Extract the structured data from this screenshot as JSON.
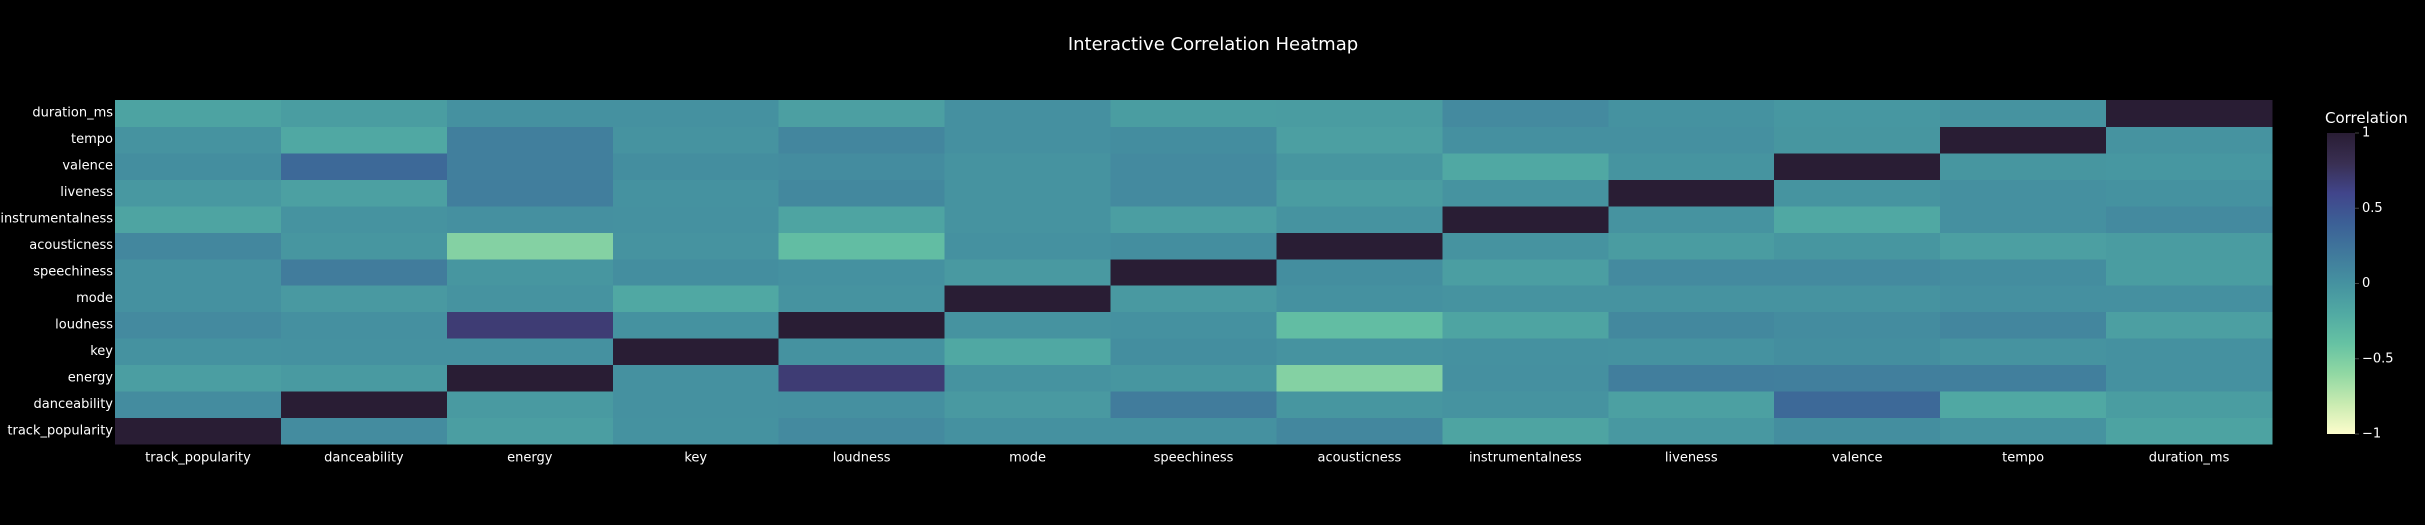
{
  "chart_data": {
    "type": "heatmap",
    "title": "Interactive Correlation Heatmap",
    "colorbar_title": "Correlation",
    "zlim": [
      -1,
      1
    ],
    "colorbar_ticks": [
      {
        "value": 1,
        "label": "1"
      },
      {
        "value": 0.5,
        "label": "0.5"
      },
      {
        "value": 0,
        "label": "0"
      },
      {
        "value": -0.5,
        "label": "−0.5"
      },
      {
        "value": -1,
        "label": "−1"
      }
    ],
    "colorscale": [
      "#fdfdcc",
      "#c9ebb1",
      "#91d8a3",
      "#66c2a3",
      "#51aaa3",
      "#4592a0",
      "#40799c",
      "#3c6096",
      "#41458b",
      "#392f52",
      "#291d34"
    ],
    "x": [
      "track_popularity",
      "danceability",
      "energy",
      "key",
      "loudness",
      "mode",
      "speechiness",
      "acousticness",
      "instrumentalness",
      "liveness",
      "valence",
      "tempo",
      "duration_ms"
    ],
    "y": [
      "track_popularity",
      "danceability",
      "energy",
      "key",
      "loudness",
      "mode",
      "speechiness",
      "acousticness",
      "instrumentalness",
      "liveness",
      "valence",
      "tempo",
      "duration_ms"
    ],
    "z": [
      [
        1.0,
        0.05,
        -0.1,
        0.0,
        0.06,
        0.01,
        0.01,
        0.09,
        -0.15,
        -0.05,
        0.03,
        -0.01,
        -0.14
      ],
      [
        0.05,
        1.0,
        -0.07,
        0.01,
        0.02,
        -0.06,
        0.18,
        -0.03,
        -0.01,
        -0.12,
        0.33,
        -0.18,
        -0.09
      ],
      [
        -0.1,
        -0.07,
        1.0,
        0.01,
        0.68,
        -0.01,
        -0.03,
        -0.54,
        0.02,
        0.16,
        0.15,
        0.15,
        0.01
      ],
      [
        0.0,
        0.01,
        0.01,
        1.0,
        0.0,
        -0.18,
        0.03,
        -0.01,
        0.01,
        0.0,
        0.03,
        -0.01,
        0.01
      ],
      [
        0.06,
        0.02,
        0.68,
        0.0,
        1.0,
        -0.01,
        0.01,
        -0.36,
        -0.15,
        0.08,
        0.05,
        0.1,
        -0.11
      ],
      [
        0.01,
        -0.06,
        -0.01,
        -0.18,
        -0.01,
        1.0,
        -0.06,
        0.01,
        -0.01,
        -0.01,
        -0.01,
        0.02,
        0.02
      ],
      [
        0.01,
        0.18,
        -0.03,
        0.03,
        0.01,
        -0.06,
        1.0,
        0.03,
        -0.1,
        0.06,
        0.06,
        0.04,
        -0.09
      ],
      [
        0.09,
        -0.03,
        -0.54,
        -0.01,
        -0.36,
        0.01,
        0.03,
        1.0,
        -0.01,
        -0.08,
        -0.03,
        -0.11,
        -0.08
      ],
      [
        -0.15,
        -0.01,
        0.02,
        0.01,
        -0.15,
        -0.01,
        -0.1,
        -0.01,
        1.0,
        -0.01,
        -0.18,
        0.02,
        0.06
      ],
      [
        -0.05,
        -0.12,
        0.16,
        0.0,
        0.08,
        -0.01,
        0.06,
        -0.08,
        -0.01,
        1.0,
        -0.02,
        0.02,
        0.0
      ],
      [
        0.03,
        0.33,
        0.15,
        0.03,
        0.05,
        -0.01,
        0.06,
        -0.03,
        -0.18,
        -0.02,
        1.0,
        -0.03,
        -0.04
      ],
      [
        -0.01,
        -0.18,
        0.15,
        -0.01,
        0.1,
        0.02,
        0.04,
        -0.11,
        0.02,
        0.02,
        -0.03,
        1.0,
        -0.01
      ],
      [
        -0.14,
        -0.09,
        0.01,
        0.01,
        -0.11,
        0.02,
        -0.09,
        -0.08,
        0.06,
        0.0,
        -0.04,
        -0.01,
        1.0
      ]
    ]
  }
}
